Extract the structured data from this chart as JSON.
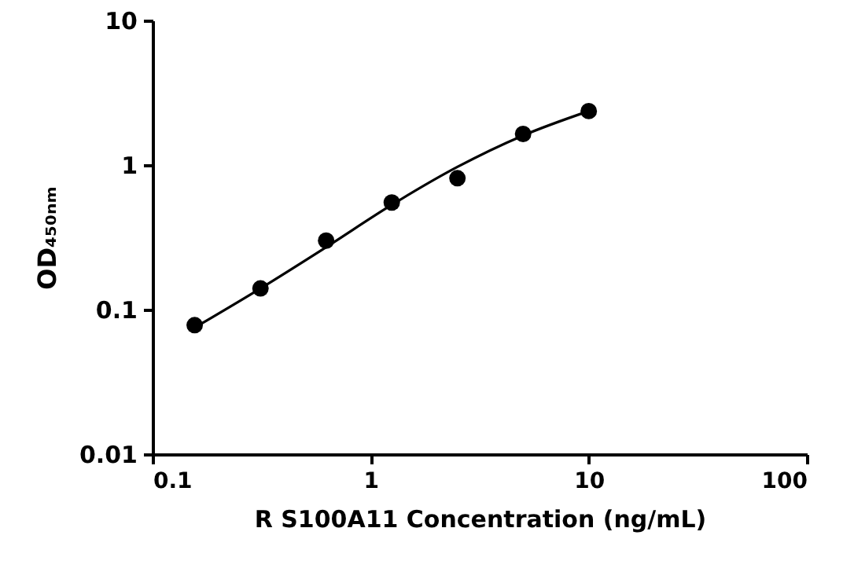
{
  "chart_data": {
    "type": "scatter",
    "xlabel": "R S100A11 Concentration (ng/mL)",
    "ylabel": "OD₄₅₀ₙₘ",
    "log": "xy",
    "xlim": [
      0.1,
      100
    ],
    "xticks": [
      0.1,
      1,
      10,
      100
    ],
    "ylim": [
      0.01,
      10
    ],
    "yticks": [
      0.01,
      0.1,
      1,
      10
    ],
    "grid": false,
    "series": [
      {
        "marker": "circle",
        "color": "#000000",
        "x": [
          0.156,
          0.3125,
          0.625,
          1.25,
          2.5,
          5,
          10
        ],
        "values": [
          0.078,
          0.14,
          0.3,
          0.55,
          0.81,
          1.64,
          2.36
        ]
      },
      {
        "type": "line",
        "color": "#000000",
        "line_style": "solid",
        "x": [
          0.156,
          0.3125,
          0.625,
          1.25,
          2.5,
          5,
          10
        ],
        "values": [
          0.075,
          0.14,
          0.27,
          0.53,
          0.97,
          1.6,
          2.36
        ]
      }
    ]
  }
}
